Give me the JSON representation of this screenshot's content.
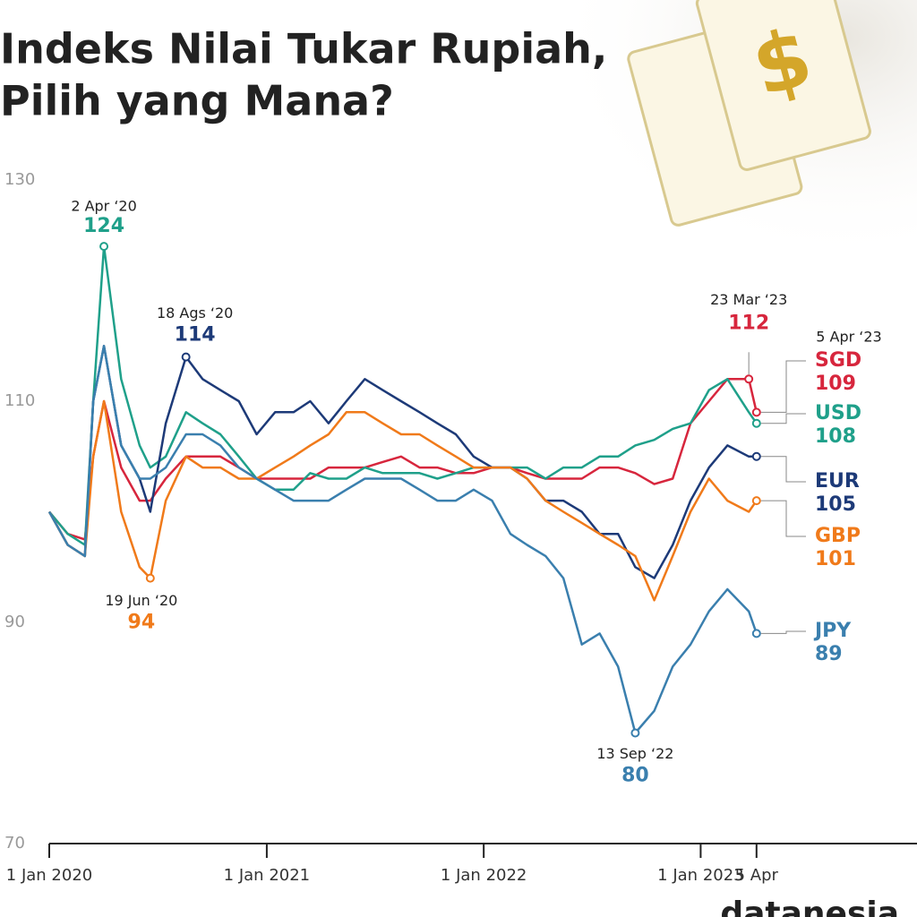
{
  "chart_data": {
    "type": "line",
    "title_lines": [
      "Indeks Nilai Tukar Rupiah,",
      "Pilih yang Mana?"
    ],
    "x": [
      "2020-01-01",
      "2020-02-01",
      "2020-03-01",
      "2020-03-15",
      "2020-04-02",
      "2020-05-01",
      "2020-06-01",
      "2020-06-19",
      "2020-07-15",
      "2020-08-18",
      "2020-09-15",
      "2020-10-15",
      "2020-11-15",
      "2020-12-15",
      "2021-01-15",
      "2021-02-15",
      "2021-03-15",
      "2021-04-15",
      "2021-05-15",
      "2021-06-15",
      "2021-07-15",
      "2021-08-15",
      "2021-09-15",
      "2021-10-15",
      "2021-11-15",
      "2021-12-15",
      "2022-01-15",
      "2022-02-15",
      "2022-03-15",
      "2022-04-15",
      "2022-05-15",
      "2022-06-15",
      "2022-07-15",
      "2022-08-15",
      "2022-09-13",
      "2022-10-15",
      "2022-11-15",
      "2022-12-15",
      "2023-01-15",
      "2023-02-15",
      "2023-03-23",
      "2023-04-05"
    ],
    "series": [
      {
        "name": "SGD",
        "color": "#d7263d",
        "highlight": {
          "date": "2023-03-23",
          "label": "23 Mar ‘23"
        },
        "values": [
          100,
          98,
          97.5,
          105,
          110,
          104,
          101,
          101,
          103,
          105,
          105,
          105,
          104,
          103,
          103,
          103,
          103,
          104,
          104,
          104,
          104.5,
          105,
          104,
          104,
          103.5,
          103.5,
          104,
          104,
          103.5,
          103,
          103,
          103,
          104,
          104,
          103.5,
          102.5,
          103,
          108,
          110,
          112,
          112,
          109
        ]
      },
      {
        "name": "USD",
        "color": "#1fa08a",
        "highlight": {
          "date": "2020-04-02",
          "label": "2 Apr ‘20"
        },
        "values": [
          100,
          98,
          97,
          110,
          124,
          112,
          106,
          104,
          105,
          109,
          108,
          107,
          105,
          103,
          102,
          102,
          103.5,
          103,
          103,
          104,
          103.5,
          103.5,
          103.5,
          103,
          103.5,
          104,
          104,
          104,
          104,
          103,
          104,
          104,
          105,
          105,
          106,
          106.5,
          107.5,
          108,
          111,
          112,
          109,
          108
        ]
      },
      {
        "name": "EUR",
        "color": "#1d3a78",
        "highlight": {
          "date": "2020-08-18",
          "label": "18 Ags ‘20"
        },
        "values": [
          100,
          97,
          96,
          110,
          115,
          106,
          103,
          100,
          108,
          114,
          112,
          111,
          110,
          107,
          109,
          109,
          110,
          108,
          110,
          112,
          111,
          110,
          109,
          108,
          107,
          105,
          104,
          104,
          103,
          101,
          101,
          100,
          98,
          98,
          95,
          94,
          97,
          101,
          104,
          106,
          105,
          105
        ]
      },
      {
        "name": "GBP",
        "color": "#f07a1a",
        "highlight": {
          "date": "2020-06-19",
          "label": "19 Jun ‘20"
        },
        "values": [
          100,
          97,
          96,
          105,
          110,
          100,
          95,
          94,
          101,
          105,
          104,
          104,
          103,
          103,
          104,
          105,
          106,
          107,
          109,
          109,
          108,
          107,
          107,
          106,
          105,
          104,
          104,
          104,
          103,
          101,
          100,
          99,
          98,
          97,
          96,
          92,
          96,
          100,
          103,
          101,
          100,
          101
        ]
      },
      {
        "name": "JPY",
        "color": "#3a7fae",
        "highlight": {
          "date": "2022-09-13",
          "label": "13 Sep ‘22"
        },
        "values": [
          100,
          97,
          96,
          110,
          115,
          106,
          103,
          103,
          104,
          107,
          107,
          106,
          104,
          103,
          102,
          101,
          101,
          101,
          102,
          103,
          103,
          103,
          102,
          101,
          101,
          102,
          101,
          98,
          97,
          96,
          94,
          88,
          89,
          86,
          80,
          82,
          86,
          88,
          91,
          93,
          91,
          89
        ]
      }
    ],
    "end_label": "5 Apr ‘23",
    "xlim": [
      "2020-01-01",
      "2023-12-31"
    ],
    "xticks": [
      {
        "value": "2020-01-01",
        "label": "1 Jan 2020"
      },
      {
        "value": "2021-01-01",
        "label": "1 Jan 2021"
      },
      {
        "value": "2022-01-01",
        "label": "1 Jan 2022"
      },
      {
        "value": "2023-01-01",
        "label": "1 Jan 2023"
      },
      {
        "value": "2023-04-05",
        "label": "5 Apr"
      }
    ],
    "ylim": [
      70,
      130
    ],
    "yticks": [
      70,
      90,
      110,
      130
    ],
    "grid": false,
    "logo": "datanesia"
  }
}
